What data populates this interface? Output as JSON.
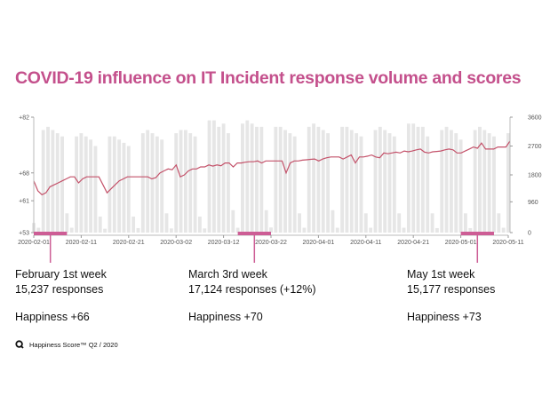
{
  "title": "COVID-19 influence on IT Incident response volume and scores",
  "chart_data": {
    "type": "bar+line",
    "title": "COVID-19 influence on IT Incident response volume and scores",
    "x_ticks": [
      "2020-02-01",
      "2020-02-11",
      "2020-02-21",
      "2020-03-02",
      "2020-03-12",
      "2020-03-22",
      "2020-04-01",
      "2020-04-11",
      "2020-04-21",
      "2020-05-01",
      "2020-05-11"
    ],
    "y_left_ticks": [
      "+82",
      "+68",
      "+61",
      "+53"
    ],
    "y_right_ticks": [
      "3600",
      "2700",
      "1800",
      "960",
      "0"
    ],
    "y_left_range": [
      53,
      82
    ],
    "y_right_range": [
      0,
      3600
    ],
    "grid": false,
    "colors": {
      "bars": "#e6e6e6",
      "line": "#c4526a",
      "accent": "#cd5d95"
    },
    "series": [
      {
        "type": "bar",
        "axis": "right",
        "x_start": "2020-02-01",
        "values": [
          300,
          150,
          3200,
          3300,
          3200,
          3100,
          3000,
          600,
          150,
          3000,
          3100,
          3000,
          2900,
          2700,
          500,
          120,
          3000,
          3000,
          2900,
          2800,
          2700,
          500,
          140,
          3100,
          3200,
          3100,
          3000,
          2900,
          600,
          130,
          3100,
          3200,
          3200,
          3100,
          3000,
          500,
          130,
          3500,
          3500,
          3300,
          3400,
          3100,
          700,
          150,
          3400,
          3500,
          3400,
          3300,
          3300,
          700,
          160,
          3300,
          3300,
          3200,
          3100,
          3000,
          600,
          150,
          3300,
          3400,
          3300,
          3200,
          3100,
          700,
          150,
          3300,
          3300,
          3200,
          3100,
          3000,
          600,
          150,
          3200,
          3300,
          3200,
          3100,
          3000,
          600,
          150,
          3400,
          3400,
          3300,
          3300,
          3000,
          600,
          140,
          3200,
          3300,
          3200,
          3100,
          2900,
          600,
          140,
          3200,
          3300,
          3200,
          3100,
          3000,
          600,
          150,
          3100
        ]
      },
      {
        "type": "line",
        "axis": "left",
        "x_start": "2020-02-01",
        "values": [
          66,
          63.5,
          62.5,
          63,
          64.5,
          65,
          65.5,
          66,
          66.5,
          67,
          67,
          65.5,
          66.5,
          67,
          67,
          67,
          67,
          65,
          63,
          64,
          65,
          66,
          66.5,
          67,
          67,
          67,
          67,
          67,
          67,
          66.5,
          66.8,
          68,
          68.5,
          69,
          68.8,
          70,
          67,
          67.5,
          68.5,
          69,
          69,
          69.5,
          69.5,
          70,
          69.7,
          70,
          69.8,
          70.5,
          70.5,
          69.5,
          70.5,
          70.5,
          70.7,
          70.8,
          70.8,
          71,
          70.5,
          71,
          71,
          71,
          71,
          71,
          68,
          70.5,
          71,
          71,
          71.2,
          71.3,
          71.4,
          71.5,
          71,
          71.5,
          71.8,
          72,
          72,
          72,
          71.5,
          72,
          72.5,
          70.5,
          72,
          72,
          72.2,
          72.5,
          72,
          71.8,
          73,
          72.8,
          73,
          73.2,
          73,
          73.5,
          73.3,
          73.5,
          73.8,
          74,
          73.2,
          73,
          73.3,
          73.4,
          73.5,
          73.8,
          74,
          73.8,
          73,
          73,
          73.5,
          74,
          74.5,
          74.2,
          75.5,
          74,
          74,
          74,
          74.5,
          74.5,
          74.5,
          76
        ]
      }
    ],
    "highlights": [
      {
        "start": "2020-02-01",
        "end": "2020-02-07"
      },
      {
        "start": "2020-03-15",
        "end": "2020-03-21"
      },
      {
        "start": "2020-05-01",
        "end": "2020-05-07"
      }
    ]
  },
  "annotations": [
    {
      "week": "February 1st week",
      "responses": "15,237 responses",
      "happiness": "Happiness +66"
    },
    {
      "week": "March 3rd week",
      "responses": "17,124 responses (+12%)",
      "happiness": "Happiness +70"
    },
    {
      "week": "May 1st week",
      "responses": "15,177 responses",
      "happiness": "Happiness +73"
    }
  ],
  "footer": {
    "text": "Happiness Score™ Q2 / 2020",
    "icon": "q-logo-icon"
  }
}
